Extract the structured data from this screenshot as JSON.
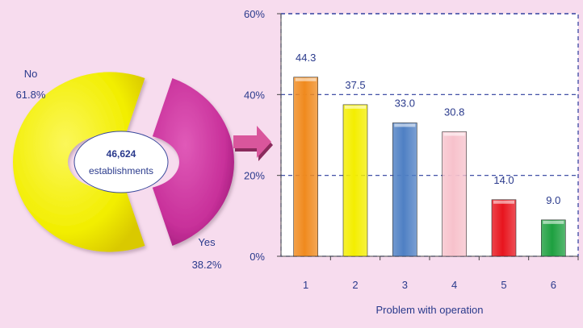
{
  "pie": {
    "center_label_line1": "46,624",
    "center_label_line2": "establishments",
    "slices": [
      {
        "label": "No",
        "value": 61.8,
        "value_label": "61.8%",
        "color": "#f2ee00"
      },
      {
        "label": "Yes",
        "value": 38.2,
        "value_label": "38.2%",
        "color": "#c8309a"
      }
    ]
  },
  "chart_data": {
    "type": "bar",
    "xlabel": "Problem with operation",
    "ylabel": "",
    "ylim": [
      0,
      60
    ],
    "yticks": [
      "0%",
      "20%",
      "40%",
      "60%"
    ],
    "categories": [
      "1",
      "2",
      "3",
      "4",
      "5",
      "6"
    ],
    "values": [
      44.3,
      37.5,
      33.0,
      30.8,
      14.0,
      9.0
    ],
    "value_labels": [
      "44.3",
      "37.5",
      "33.0",
      "30.8",
      "14.0",
      "9.0"
    ],
    "colors": [
      "#f08a1e",
      "#f4ee00",
      "#4f80c4",
      "#f7c2cc",
      "#e8151e",
      "#1ea040"
    ],
    "grid": "dashed-horizontal"
  },
  "colors": {
    "text": "#2a3a8c",
    "arrow": "#d9569c",
    "axis": "#444444",
    "grid": "#2a3a9c",
    "background": "#f7dcee"
  }
}
